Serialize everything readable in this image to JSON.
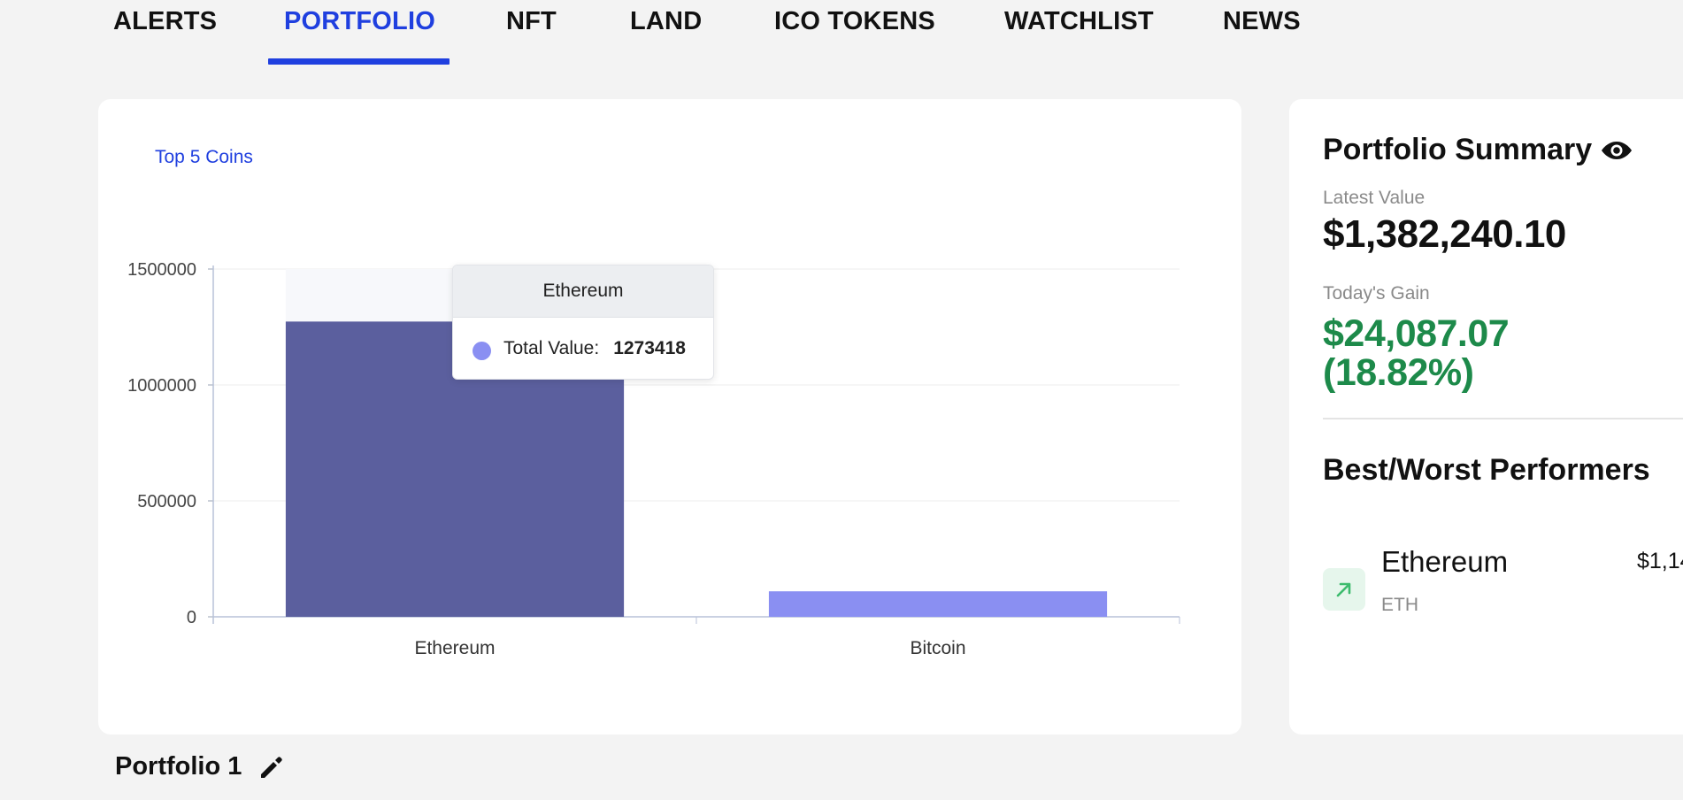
{
  "nav": {
    "tabs": [
      {
        "label": "ALERTS"
      },
      {
        "label": "PORTFOLIO",
        "active": true
      },
      {
        "label": "NFT"
      },
      {
        "label": "LAND"
      },
      {
        "label": "ICO TOKENS"
      },
      {
        "label": "WATCHLIST"
      },
      {
        "label": "NEWS"
      }
    ]
  },
  "chart_section": {
    "tab_label": "Top 5 Coins"
  },
  "chart_data": {
    "type": "bar",
    "categories": [
      "Ethereum",
      "Bitcoin"
    ],
    "values": [
      1273418,
      110000
    ],
    "ylim": [
      0,
      1500000
    ],
    "yticks": [
      0,
      500000,
      1000000,
      1500000
    ],
    "ytick_labels": [
      "0",
      "500000",
      "1000000",
      "1500000"
    ],
    "bar_colors": [
      "#5b5f9e",
      "#8a8ff2"
    ],
    "grid": true,
    "tooltip": {
      "title": "Ethereum",
      "label": "Total Value:",
      "value": "1273418"
    }
  },
  "summary": {
    "title": "Portfolio Summary",
    "latest_value_label": "Latest Value",
    "latest_value": "$1,382,240.10",
    "todays_gain_label": "Today's Gain",
    "todays_gain_amount": "$24,087.07",
    "todays_gain_percent": "(18.82%)",
    "gain_color": "#1d8a4a",
    "performers_title": "Best/Worst Performers",
    "performers": [
      {
        "name": "Ethereum",
        "symbol": "ETH",
        "value": "$1,14",
        "trend_icon": "arrow-up-right-icon"
      }
    ]
  },
  "portfolio": {
    "name": "Portfolio 1",
    "edit_icon": "pencil-icon"
  },
  "colors": {
    "accent": "#1f3fdf",
    "background": "#f3f3f3"
  }
}
